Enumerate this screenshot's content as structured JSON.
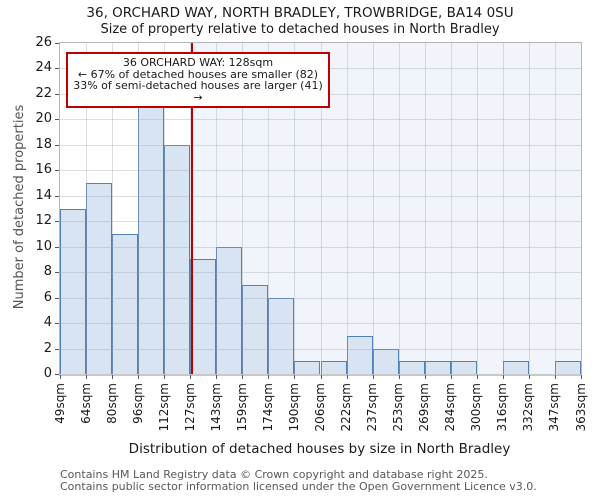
{
  "title": {
    "line1": "36, ORCHARD WAY, NORTH BRADLEY, TROWBRIDGE, BA14 0SU",
    "line2": "Size of property relative to detached houses in North Bradley"
  },
  "annotation": {
    "line1": "36 ORCHARD WAY: 128sqm",
    "line2": "← 67% of detached houses are smaller (82)",
    "line3": "33% of semi-detached houses are larger (41) →"
  },
  "chart_data": {
    "type": "bar",
    "subtype": "histogram",
    "title": "Size of property relative to detached houses in North Bradley",
    "xlabel": "Distribution of detached houses by size in North Bradley",
    "ylabel": "Number of detached properties",
    "bin_edges": [
      49,
      64,
      80,
      96,
      112,
      127,
      143,
      159,
      174,
      190,
      206,
      222,
      237,
      253,
      269,
      284,
      300,
      316,
      332,
      347,
      363
    ],
    "bin_labels": [
      "49sqm",
      "64sqm",
      "80sqm",
      "96sqm",
      "112sqm",
      "127sqm",
      "143sqm",
      "159sqm",
      "174sqm",
      "190sqm",
      "206sqm",
      "222sqm",
      "237sqm",
      "253sqm",
      "269sqm",
      "284sqm",
      "300sqm",
      "316sqm",
      "332sqm",
      "347sqm",
      "363sqm"
    ],
    "values": [
      13,
      15,
      11,
      22,
      18,
      9,
      10,
      7,
      6,
      1,
      1,
      3,
      2,
      1,
      1,
      1,
      0,
      1,
      0,
      1
    ],
    "marker_value": 128,
    "ylim": [
      0,
      26
    ],
    "ytick_step": 2,
    "grid": true,
    "legend": "none",
    "colors": {
      "bar_fill": "#d9e4f3",
      "bar_edge": "#4f81bd",
      "marker_line": "#c00000",
      "annotation_border": "#c00000",
      "region_tint": "#f1f4fb",
      "grid": "#9aa0ac59",
      "tick": "#555555",
      "footer_text": "#58585b"
    }
  },
  "footer": {
    "line1": "Contains HM Land Registry data © Crown copyright and database right 2025.",
    "line2": "Contains public sector information licensed under the Open Government Licence v3.0."
  }
}
